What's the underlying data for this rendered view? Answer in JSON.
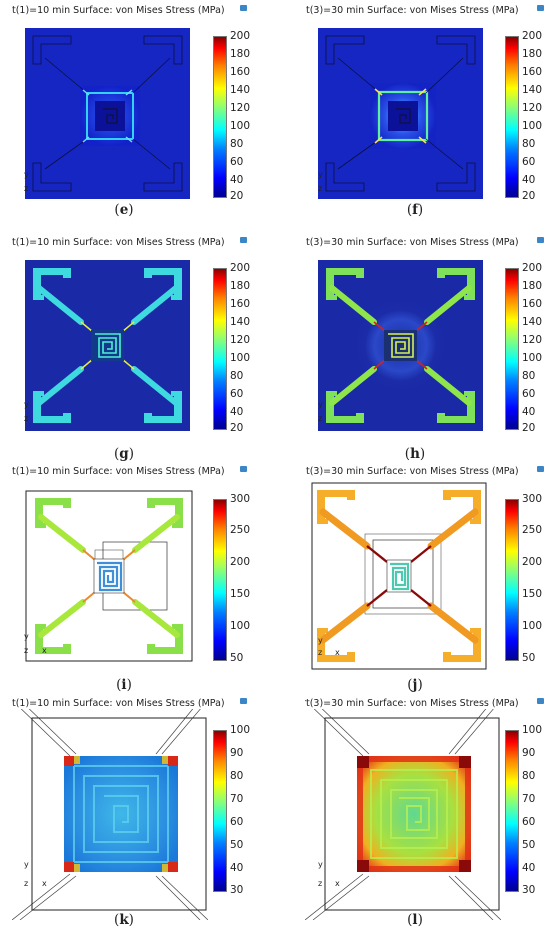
{
  "panels": [
    {
      "title": "t(1)=10 min Surface: von Mises Stress (MPa)",
      "caption_letter": "e",
      "ticks": [
        "200",
        "180",
        "160",
        "140",
        "120",
        "100",
        "80",
        "60",
        "40",
        "20"
      ]
    },
    {
      "title": "t(3)=30 min Surface: von Mises Stress (MPa)",
      "caption_letter": "f",
      "ticks": [
        "200",
        "180",
        "160",
        "140",
        "120",
        "100",
        "80",
        "60",
        "40",
        "20"
      ]
    },
    {
      "title": "t(1)=10 min Surface: von Mises Stress (MPa)",
      "caption_letter": "g",
      "ticks": [
        "200",
        "180",
        "160",
        "140",
        "120",
        "100",
        "80",
        "60",
        "40",
        "20"
      ]
    },
    {
      "title": "t(3)=30 min Surface: von Mises Stress (MPa)",
      "caption_letter": "h",
      "ticks": [
        "200",
        "180",
        "160",
        "140",
        "120",
        "100",
        "80",
        "60",
        "40",
        "20"
      ]
    },
    {
      "title": "t(1)=10 min Surface: von Mises Stress (MPa)",
      "caption_letter": "i",
      "ticks": [
        "300",
        "250",
        "200",
        "150",
        "100",
        "50"
      ]
    },
    {
      "title": "t(3)=30 min Surface: von Mises Stress (MPa)",
      "caption_letter": "j",
      "ticks": [
        "300",
        "250",
        "200",
        "150",
        "100",
        "50"
      ]
    },
    {
      "title": "t(1)=10 min Surface: von Mises Stress (MPa)",
      "caption_letter": "k",
      "ticks": [
        "100",
        "90",
        "80",
        "70",
        "60",
        "50",
        "40",
        "30"
      ]
    },
    {
      "title": "t(3)=30 min Surface: von Mises Stress (MPa)",
      "caption_letter": "l",
      "ticks": [
        "100",
        "90",
        "80",
        "70",
        "60",
        "50",
        "40",
        "30"
      ]
    }
  ],
  "axes": {
    "y": "y",
    "z": "z",
    "x": "x"
  },
  "caption_open": "(",
  "caption_close": ")"
}
